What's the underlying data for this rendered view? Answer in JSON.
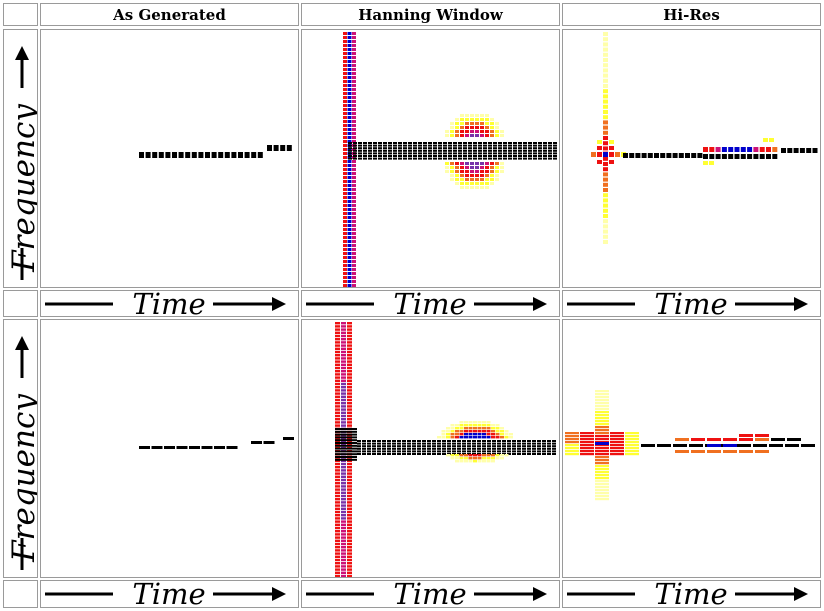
{
  "columns": {
    "c1": "As Generated",
    "c2": "Hanning Window",
    "c3": "Hi-Res"
  },
  "axes": {
    "x_label": "Time",
    "y_label": "Frequency"
  },
  "colors": {
    "black": "#000000",
    "blue": "#0000cc",
    "red": "#ee1111",
    "magenta": "#cc1177",
    "purple": "#7733aa",
    "orange": "#f07020",
    "yellow": "#ffff33",
    "paleYellow": "#ffffaa",
    "border": "#9a9a9a"
  }
}
